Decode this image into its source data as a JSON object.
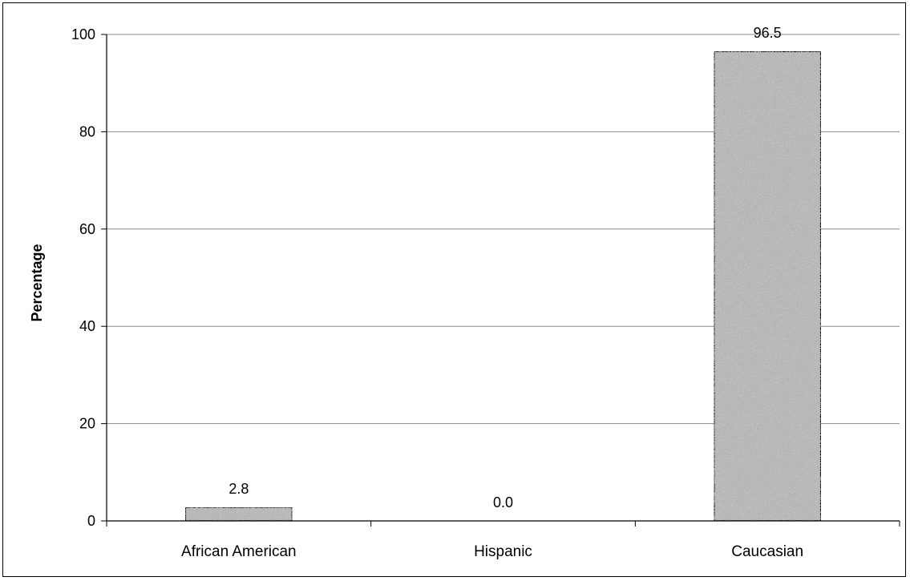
{
  "chart_data": {
    "type": "bar",
    "title": "",
    "xlabel": "",
    "ylabel": "Percentage",
    "categories": [
      "African American",
      "Hispanic",
      "Caucasian"
    ],
    "values": [
      2.8,
      0.0,
      96.5
    ],
    "data_labels": [
      "2.8",
      "0.0",
      "96.5"
    ],
    "ylim": [
      0,
      100
    ],
    "yticks": [
      0,
      20,
      40,
      60,
      80,
      100
    ],
    "grid": true,
    "legend": "none",
    "colors": {
      "bar_fill": "#b8b8b8",
      "bar_stroke": "#000000",
      "grid": "#8a8a8a",
      "axis": "#000000"
    }
  }
}
